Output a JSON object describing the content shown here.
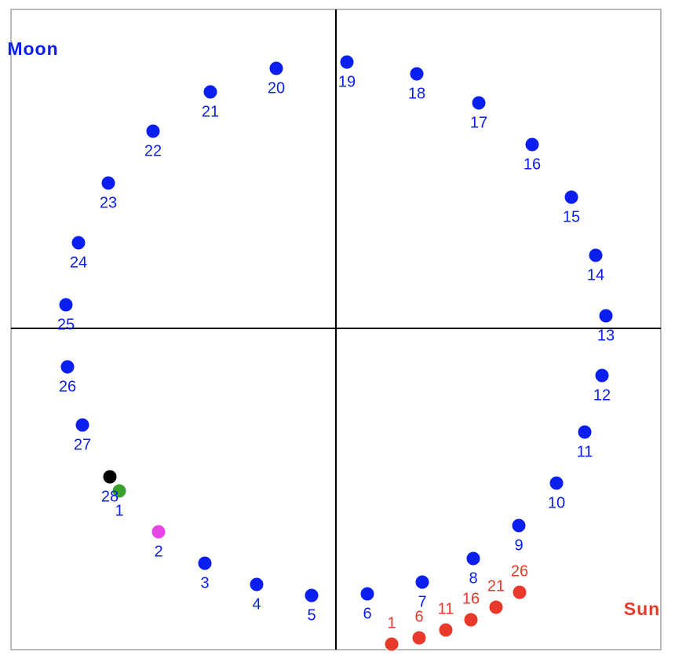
{
  "chart_data": {
    "type": "scatter",
    "xlim": [
      -414,
      414
    ],
    "ylim": [
      -409,
      406
    ],
    "series": [
      {
        "name": "Moon",
        "color": "#0a1ef0",
        "legend": "top-left",
        "label_position": "below",
        "labels": [
          1,
          2,
          3,
          4,
          5,
          6,
          7,
          8,
          9,
          10,
          11,
          12,
          13,
          14,
          15,
          16,
          17,
          18,
          19,
          20,
          21,
          22,
          23,
          24,
          25,
          26,
          27,
          28
        ],
        "x": [
          -276,
          -226,
          -167,
          -101,
          -31,
          40,
          110,
          175,
          233,
          281,
          317,
          339,
          344,
          331,
          300,
          250,
          182,
          103,
          14,
          -76,
          -160,
          -233,
          -290,
          -328,
          -344,
          -342,
          -323,
          -288
        ],
        "values": [
          -207,
          -259,
          -299,
          -326,
          -340,
          -338,
          -323,
          -293,
          -251,
          -197,
          -132,
          -60,
          16,
          93,
          167,
          234,
          287,
          324,
          339,
          331,
          301,
          251,
          185,
          109,
          30,
          -49,
          -123,
          -189
        ],
        "colors": [
          "#3aa030",
          "#e845e8",
          "#0a1ef0",
          "#0a1ef0",
          "#0a1ef0",
          "#0a1ef0",
          "#0a1ef0",
          "#0a1ef0",
          "#0a1ef0",
          "#0a1ef0",
          "#0a1ef0",
          "#0a1ef0",
          "#0a1ef0",
          "#0a1ef0",
          "#0a1ef0",
          "#0a1ef0",
          "#0a1ef0",
          "#0a1ef0",
          "#0a1ef0",
          "#0a1ef0",
          "#0a1ef0",
          "#0a1ef0",
          "#0a1ef0",
          "#0a1ef0",
          "#0a1ef0",
          "#0a1ef0",
          "#0a1ef0",
          "#000000"
        ]
      },
      {
        "name": "Sun",
        "color": "#e8392a",
        "legend": "bottom-right",
        "label_position": "above",
        "labels": [
          1,
          6,
          11,
          16,
          21,
          26
        ],
        "x": [
          71,
          106,
          140,
          172,
          204,
          234
        ],
        "values": [
          -402,
          -394,
          -384,
          -371,
          -355,
          -336
        ]
      }
    ]
  }
}
